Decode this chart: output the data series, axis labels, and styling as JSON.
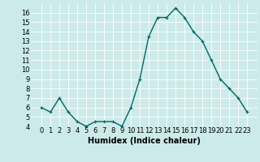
{
  "x": [
    0,
    1,
    2,
    3,
    4,
    5,
    6,
    7,
    8,
    9,
    10,
    11,
    12,
    13,
    14,
    15,
    16,
    17,
    18,
    19,
    20,
    21,
    22,
    23
  ],
  "y": [
    6,
    5.5,
    7,
    5.5,
    4.5,
    4,
    4.5,
    4.5,
    4.5,
    4,
    6,
    9,
    13.5,
    15.5,
    15.5,
    16.5,
    15.5,
    14,
    13,
    11,
    9,
    8,
    7,
    5.5
  ],
  "line_color": "#006666",
  "marker": "+",
  "marker_size": 3,
  "bg_color": "#cceaea",
  "grid_color": "#ffffff",
  "xlabel": "Humidex (Indice chaleur)",
  "xlabel_fontsize": 7,
  "tick_fontsize": 6,
  "ylim": [
    4,
    17
  ],
  "yticks": [
    4,
    5,
    6,
    7,
    8,
    9,
    10,
    11,
    12,
    13,
    14,
    15,
    16
  ],
  "xtick_labels": [
    "0",
    "1",
    "2",
    "3",
    "4",
    "5",
    "6",
    "7",
    "8",
    "9",
    "10",
    "11",
    "12",
    "13",
    "14",
    "15",
    "16",
    "17",
    "18",
    "19",
    "20",
    "21",
    "22",
    "23"
  ],
  "linewidth": 1.0
}
